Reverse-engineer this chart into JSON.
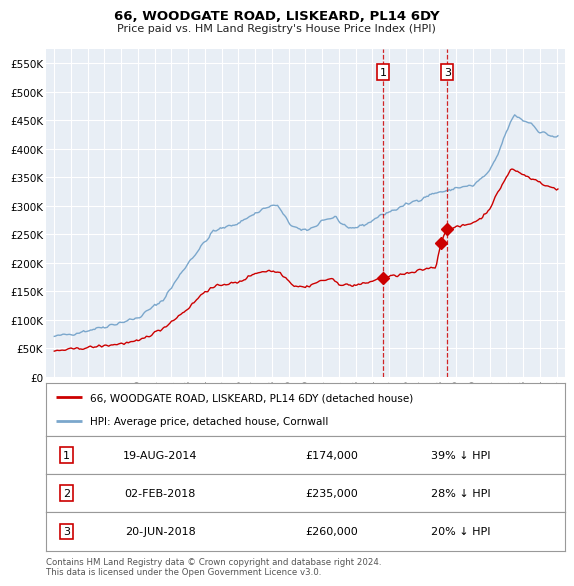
{
  "title1": "66, WOODGATE ROAD, LISKEARD, PL14 6DY",
  "title2": "Price paid vs. HM Land Registry's House Price Index (HPI)",
  "legend_property": "66, WOODGATE ROAD, LISKEARD, PL14 6DY (detached house)",
  "legend_hpi": "HPI: Average price, detached house, Cornwall",
  "property_color": "#cc0000",
  "hpi_color": "#7ba7cc",
  "bg_color": "#e8eef5",
  "grid_color": "#ffffff",
  "transactions": [
    {
      "label": "1",
      "date": "19-AUG-2014",
      "price": 174000,
      "x_year": 2014.63,
      "pct": "39% ↓ HPI"
    },
    {
      "label": "2",
      "date": "02-FEB-2018",
      "price": 235000,
      "x_year": 2018.09,
      "pct": "28% ↓ HPI"
    },
    {
      "label": "3",
      "date": "20-JUN-2018",
      "price": 260000,
      "x_year": 2018.47,
      "pct": "20% ↓ HPI"
    }
  ],
  "vlines": [
    2014.63,
    2018.47
  ],
  "vline_labels": [
    "1",
    "3"
  ],
  "ylim": [
    0,
    575000
  ],
  "yticks": [
    0,
    50000,
    100000,
    150000,
    200000,
    250000,
    300000,
    350000,
    400000,
    450000,
    500000,
    550000
  ],
  "ytick_labels": [
    "£0",
    "£50K",
    "£100K",
    "£150K",
    "£200K",
    "£250K",
    "£300K",
    "£350K",
    "£400K",
    "£450K",
    "£500K",
    "£550K"
  ],
  "xlim": [
    1994.5,
    2025.5
  ],
  "xticks": [
    1995,
    1996,
    1997,
    1998,
    1999,
    2000,
    2001,
    2002,
    2003,
    2004,
    2005,
    2006,
    2007,
    2008,
    2009,
    2010,
    2011,
    2012,
    2013,
    2014,
    2015,
    2016,
    2017,
    2018,
    2019,
    2020,
    2021,
    2022,
    2023,
    2024,
    2025
  ],
  "table_rows": [
    {
      "label": "1",
      "date": "19-AUG-2014",
      "price": "£174,000",
      "pct": "39% ↓ HPI"
    },
    {
      "label": "2",
      "date": "02-FEB-2018",
      "price": "£235,000",
      "pct": "28% ↓ HPI"
    },
    {
      "label": "3",
      "date": "20-JUN-2018",
      "price": "£260,000",
      "pct": "20% ↓ HPI"
    }
  ],
  "footer": "Contains HM Land Registry data © Crown copyright and database right 2024.\nThis data is licensed under the Open Government Licence v3.0."
}
